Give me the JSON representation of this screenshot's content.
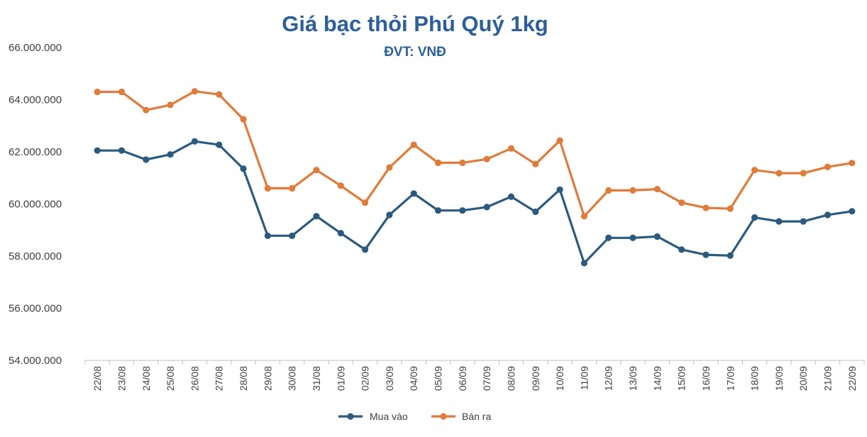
{
  "chart_data": {
    "type": "line",
    "title": "Giá bạc thỏi Phú Quý 1kg",
    "subtitle": "ĐVT: VNĐ",
    "xlabel": "",
    "ylabel": "",
    "ylim": [
      54000000,
      66000000
    ],
    "yticks": [
      54000000,
      56000000,
      58000000,
      60000000,
      62000000,
      64000000,
      66000000
    ],
    "ytick_labels": [
      "54.000.000",
      "56.000.000",
      "58.000.000",
      "60.000.000",
      "62.000.000",
      "64.000.000",
      "66.000.000"
    ],
    "categories": [
      "22/08",
      "23/08",
      "24/08",
      "25/08",
      "26/08",
      "27/08",
      "28/08",
      "29/08",
      "30/08",
      "31/08",
      "01/09",
      "02/09",
      "03/09",
      "04/09",
      "05/09",
      "06/09",
      "07/09",
      "08/09",
      "09/09",
      "10/09",
      "11/09",
      "12/09",
      "13/09",
      "14/09",
      "15/09",
      "16/09",
      "17/09",
      "18/09",
      "19/09",
      "20/09",
      "21/09",
      "22/09"
    ],
    "grid": false,
    "legend": "bottom-center",
    "series": [
      {
        "name": "Mua vào",
        "color": "#2b5a7e",
        "values": [
          62050000,
          62050000,
          61700000,
          61900000,
          62400000,
          62270000,
          61350000,
          58780000,
          58780000,
          59530000,
          58880000,
          58250000,
          59580000,
          60400000,
          59750000,
          59750000,
          59880000,
          60280000,
          59700000,
          60550000,
          57730000,
          58700000,
          58700000,
          58750000,
          58250000,
          58050000,
          58020000,
          59480000,
          59330000,
          59330000,
          59580000,
          59720000
        ]
      },
      {
        "name": "Bán ra",
        "color": "#e07b39",
        "values": [
          64300000,
          64300000,
          63600000,
          63800000,
          64320000,
          64200000,
          63250000,
          60600000,
          60600000,
          61300000,
          60700000,
          60050000,
          61400000,
          62270000,
          61580000,
          61580000,
          61720000,
          62130000,
          61530000,
          62430000,
          59530000,
          60520000,
          60520000,
          60570000,
          60050000,
          59850000,
          59820000,
          61300000,
          61180000,
          61180000,
          61420000,
          61570000
        ]
      }
    ]
  }
}
